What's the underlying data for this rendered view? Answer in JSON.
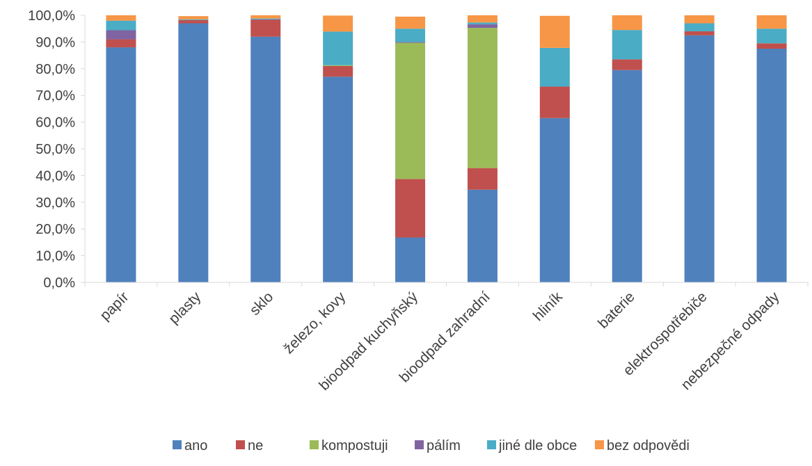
{
  "chart_data": {
    "type": "bar",
    "stacked": true,
    "categories": [
      "papír",
      "plasty",
      "sklo",
      "železo, kovy",
      "bioodpad kuchyňský",
      "bioodpad zahradní",
      "hliník",
      "baterie",
      "elektrospotřebiče",
      "nebezpečné odpady"
    ],
    "series": [
      {
        "name": "ano",
        "color": "#4f81bd",
        "values": [
          88.0,
          97.0,
          92.0,
          77.0,
          16.8,
          34.7,
          61.5,
          79.5,
          92.5,
          87.5
        ]
      },
      {
        "name": "ne",
        "color": "#c0504d",
        "values": [
          3.0,
          1.2,
          6.3,
          4.0,
          21.9,
          8.1,
          11.8,
          4.0,
          1.5,
          2.0
        ]
      },
      {
        "name": "kompostuji",
        "color": "#9bbb59",
        "values": [
          0,
          0,
          0,
          0.3,
          51.0,
          52.5,
          0,
          0,
          0,
          0
        ]
      },
      {
        "name": "pálím",
        "color": "#8064a2",
        "values": [
          3.4,
          0,
          0.2,
          0,
          0.3,
          1.3,
          0,
          0,
          0,
          0
        ]
      },
      {
        "name": "jiné dle obce",
        "color": "#4bacc6",
        "values": [
          3.6,
          0.3,
          0.3,
          12.6,
          5.0,
          0.7,
          14.5,
          11.0,
          3.0,
          5.5
        ]
      },
      {
        "name": "bez odpovědi",
        "color": "#f79646",
        "values": [
          2.0,
          1.2,
          1.2,
          6.0,
          4.5,
          2.7,
          12.0,
          5.5,
          3.0,
          5.0
        ]
      }
    ],
    "ylim": [
      0,
      100
    ],
    "ytick_values": [
      0,
      10,
      20,
      30,
      40,
      50,
      60,
      70,
      80,
      90,
      100
    ],
    "ytick_labels": [
      "0,0%",
      "10,0%",
      "20,0%",
      "30,0%",
      "40,0%",
      "50,0%",
      "60,0%",
      "70,0%",
      "80,0%",
      "90,0%",
      "100,0%"
    ],
    "title": "",
    "xlabel": "",
    "ylabel": "",
    "grid": false,
    "legend_position": "bottom"
  }
}
